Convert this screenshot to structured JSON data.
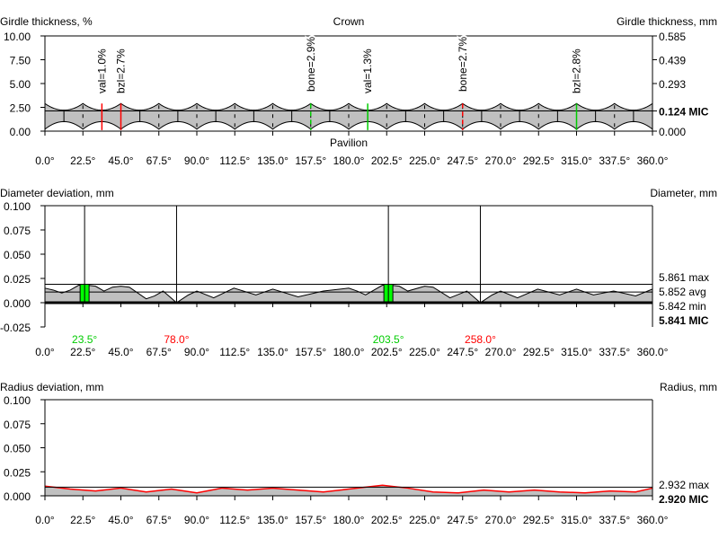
{
  "chart_data": [
    {
      "type": "area",
      "title": "Girdle thickness",
      "ylabel": "Girdle thickness, %",
      "ylabel_right": "Girdle thickness, mm",
      "top_label": "Crown",
      "bottom_label": "Pavilion",
      "yticks": [
        "10.00",
        "7.50",
        "5.00",
        "2.50",
        "0.00"
      ],
      "ytick_values": [
        10,
        7.5,
        5,
        2.5,
        0
      ],
      "yticks_right": [
        "0.585",
        "0.439",
        "0.293",
        "0.124 MIC",
        "0.000"
      ],
      "ytick_right_values": [
        10,
        7.5,
        5,
        2.12,
        0
      ],
      "ylim": [
        0,
        10
      ],
      "xlim": [
        0,
        360
      ],
      "xticks": [
        "0.0°",
        "22.5°",
        "45.0°",
        "67.5°",
        "90.0°",
        "112.5°",
        "135.0°",
        "157.5°",
        "180.0°",
        "202.5°",
        "225.0°",
        "247.5°",
        "270.0°",
        "292.5°",
        "315.0°",
        "337.5°",
        "360.0°"
      ],
      "crown_peak_pct": 2.9,
      "crown_valley_pct": 2.2,
      "pavilion_cusp_pct": 0.2,
      "pavilion_arch_pct": 1.0,
      "mic_pct": 2.12,
      "markers": [
        {
          "label": "val=1.0%",
          "angle": 33.75,
          "color": "#ff0000",
          "dashed": false
        },
        {
          "label": "bzl=2.7%",
          "angle": 45,
          "color": "#ff0000",
          "dashed": false
        },
        {
          "label": "bone=2.9%",
          "angle": 157.5,
          "color": "#00cc00",
          "dashed": true
        },
        {
          "label": "val=1.3%",
          "angle": 191.25,
          "color": "#00cc00",
          "dashed": false
        },
        {
          "label": "bone=2.7%",
          "angle": 247.5,
          "color": "#ff0000",
          "dashed": true
        },
        {
          "label": "bzl=2.8%",
          "angle": 315,
          "color": "#00cc00",
          "dashed": false
        }
      ]
    },
    {
      "type": "area",
      "title": "Diameter deviation",
      "ylabel": "Diameter deviation, mm",
      "ylabel_right": "Diameter, mm",
      "yticks": [
        "0.100",
        "0.075",
        "0.050",
        "0.025",
        "0.000",
        "-0.025"
      ],
      "ytick_values": [
        0.1,
        0.075,
        0.05,
        0.025,
        0,
        -0.025
      ],
      "ylim": [
        -0.025,
        0.1
      ],
      "xlim": [
        0,
        360
      ],
      "xticks": [
        "0.0°",
        "22.5°",
        "45.0°",
        "67.5°",
        "90.0°",
        "112.5°",
        "135.0°",
        "157.5°",
        "180.0°",
        "202.5°",
        "225.0°",
        "247.5°",
        "270.0°",
        "292.5°",
        "315.0°",
        "337.5°",
        "360.0°"
      ],
      "right_labels": [
        {
          "text": "5.861 max",
          "value": 0.019,
          "bold": false
        },
        {
          "text": "5.852 avg",
          "value": 0.011,
          "bold": false
        },
        {
          "text": "5.842 min",
          "value": 0,
          "bold": false
        },
        {
          "text": "5.841 MIC",
          "value": -0.015,
          "bold": true
        }
      ],
      "ref_lines": [
        0.019,
        0.011
      ],
      "angle_markers": [
        {
          "label": "23.5°",
          "angle": 23.5,
          "color": "#00cc00"
        },
        {
          "label": "78.0°",
          "angle": 78,
          "color": "#ff0000"
        },
        {
          "label": "203.5°",
          "angle": 203.5,
          "color": "#00cc00"
        },
        {
          "label": "258.0°",
          "angle": 258,
          "color": "#ff0000"
        }
      ],
      "x": [
        0,
        5,
        10,
        15,
        20,
        25,
        30,
        35,
        40,
        45,
        50,
        55,
        60,
        65,
        70,
        78,
        85,
        90,
        100,
        112,
        125,
        135,
        150,
        165,
        180,
        185,
        190,
        200,
        205,
        210,
        215,
        225,
        230,
        240,
        250,
        258,
        265,
        270,
        280,
        292,
        305,
        315,
        325,
        337,
        350,
        360
      ],
      "y": [
        0.015,
        0.013,
        0.01,
        0.013,
        0.018,
        0.018,
        0.017,
        0.012,
        0.016,
        0.017,
        0.016,
        0.01,
        0.004,
        0.007,
        0.012,
        0.0,
        0.008,
        0.012,
        0.005,
        0.015,
        0.008,
        0.014,
        0.006,
        0.012,
        0.015,
        0.012,
        0.008,
        0.018,
        0.018,
        0.017,
        0.012,
        0.017,
        0.016,
        0.005,
        0.012,
        0.0,
        0.008,
        0.012,
        0.005,
        0.014,
        0.008,
        0.014,
        0.008,
        0.012,
        0.007,
        0.014
      ]
    },
    {
      "type": "area",
      "title": "Radius deviation",
      "ylabel": "Radius deviation, mm",
      "ylabel_right": "Radius, mm",
      "yticks": [
        "0.100",
        "0.075",
        "0.050",
        "0.025",
        "0.000"
      ],
      "ytick_values": [
        0.1,
        0.075,
        0.05,
        0.025,
        0
      ],
      "ylim": [
        0,
        0.1
      ],
      "xlim": [
        0,
        360
      ],
      "xticks": [
        "0.0°",
        "22.5°",
        "45.0°",
        "67.5°",
        "90.0°",
        "112.5°",
        "135.0°",
        "157.5°",
        "180.0°",
        "202.5°",
        "225.0°",
        "247.5°",
        "270.0°",
        "292.5°",
        "315.0°",
        "337.5°",
        "360.0°"
      ],
      "right_labels": [
        {
          "text": "2.932 max",
          "value": 0.012,
          "bold": false
        },
        {
          "text": "2.920 MIC",
          "value": -0.003,
          "bold": true
        }
      ],
      "ref_lines": [
        0.009
      ],
      "x": [
        0,
        15,
        30,
        45,
        60,
        75,
        90,
        105,
        120,
        135,
        150,
        165,
        180,
        190,
        200,
        215,
        230,
        245,
        260,
        275,
        290,
        305,
        320,
        335,
        350,
        360
      ],
      "y": [
        0.01,
        0.007,
        0.005,
        0.008,
        0.004,
        0.007,
        0.003,
        0.008,
        0.006,
        0.008,
        0.006,
        0.004,
        0.007,
        0.009,
        0.011,
        0.008,
        0.004,
        0.003,
        0.006,
        0.004,
        0.006,
        0.004,
        0.003,
        0.005,
        0.004,
        0.008
      ]
    }
  ]
}
